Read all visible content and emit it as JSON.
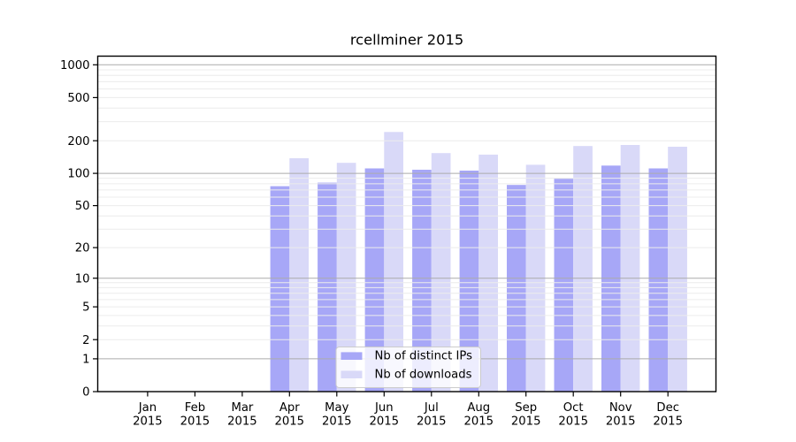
{
  "chart_data": {
    "type": "bar",
    "title": "rcellminer 2015",
    "categories": [
      {
        "month": "Jan",
        "year": "2015"
      },
      {
        "month": "Feb",
        "year": "2015"
      },
      {
        "month": "Mar",
        "year": "2015"
      },
      {
        "month": "Apr",
        "year": "2015"
      },
      {
        "month": "May",
        "year": "2015"
      },
      {
        "month": "Jun",
        "year": "2015"
      },
      {
        "month": "Jul",
        "year": "2015"
      },
      {
        "month": "Aug",
        "year": "2015"
      },
      {
        "month": "Sep",
        "year": "2015"
      },
      {
        "month": "Oct",
        "year": "2015"
      },
      {
        "month": "Nov",
        "year": "2015"
      },
      {
        "month": "Dec",
        "year": "2015"
      }
    ],
    "series": [
      {
        "name": "Nb of distinct IPs",
        "color": "#a7a7f7",
        "values": [
          0,
          0,
          0,
          76,
          82,
          111,
          108,
          106,
          78,
          89,
          118,
          111
        ]
      },
      {
        "name": "Nb of downloads",
        "color": "#d9d9f8",
        "values": [
          0,
          0,
          0,
          138,
          125,
          241,
          154,
          149,
          120,
          179,
          183,
          176
        ]
      }
    ],
    "y_scale": "log10(1+v)",
    "yticks": [
      0,
      1,
      2,
      5,
      10,
      20,
      50,
      100,
      200,
      500,
      1000
    ],
    "ylim": [
      0,
      1200
    ],
    "xlabel": "",
    "ylabel": "",
    "grid": true,
    "legend_position": "lower center",
    "colors": {
      "grid_minor": "#ececec",
      "grid_major": "#ababab",
      "axis": "#000000",
      "legend_border": "#cccccc",
      "legend_bg": "rgba(255,255,255,0.8)"
    }
  }
}
